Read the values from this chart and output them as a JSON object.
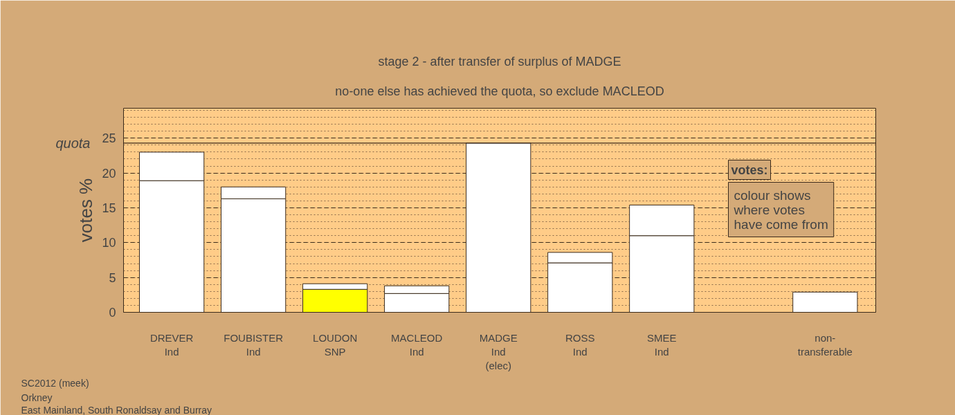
{
  "chart_data": {
    "type": "bar",
    "stacked": true,
    "title": "stage 2 - after transfer of surplus of MADGE",
    "subtitle": "no-one else has achieved the quota, so exclude MACLEOD",
    "ylabel": "votes %",
    "categories": [
      "DREVER\nInd",
      "FOUBISTER\nInd",
      "LOUDON\nSNP",
      "MACLEOD\nInd",
      "MADGE\nInd\n(elec)",
      "ROSS\nInd",
      "SMEE\nInd",
      null,
      "non-\ntransferable"
    ],
    "series": [
      {
        "colors": [
          "#ffffff",
          "#ffffff",
          "#ffff00",
          "#ffffff",
          "#ffffff",
          "#ffffff",
          "#ffffff",
          "#ffffff",
          "#ffffff"
        ],
        "values": [
          18.9,
          16.3,
          3.3,
          2.7,
          24.3,
          7.1,
          11.0,
          null,
          2.9
        ]
      },
      {
        "color": "#ffffff",
        "values": [
          4.1,
          1.7,
          0.8,
          1.1,
          null,
          1.5,
          4.4,
          null,
          null
        ]
      }
    ],
    "ylim": [
      0,
      29.3
    ],
    "yticks": [
      0,
      5,
      10,
      15,
      20,
      25
    ],
    "grid": "y",
    "ref_lines": [
      {
        "axis": "y",
        "value": 24.3,
        "label": "quota"
      }
    ],
    "annotations": [
      "votes:",
      "colour shows\nwhere votes\nhave come from",
      "SC2012 (meek)",
      "Orkney",
      "East Mainland, South Ronaldsay and Burray"
    ]
  }
}
